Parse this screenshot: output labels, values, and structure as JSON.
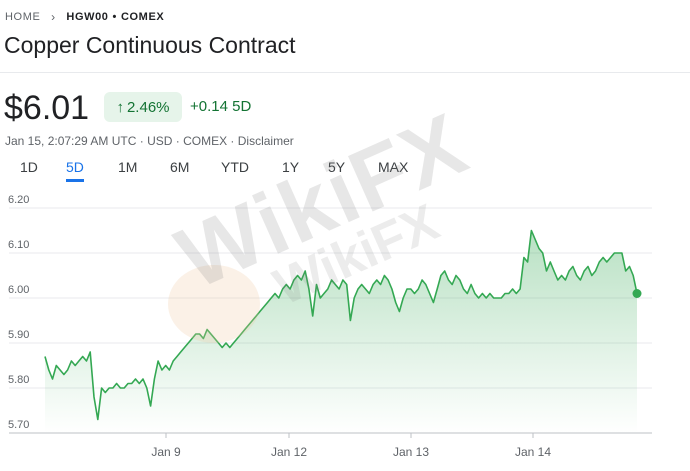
{
  "breadcrumb": {
    "home": "HOME",
    "symbol": "HGW00",
    "separator": "•",
    "exchange": "COMEX"
  },
  "title": "Copper Continuous Contract",
  "quote": {
    "price": "$6.01",
    "pct_change": "2.46%",
    "abs_change": "+0.14 5D",
    "meta": "Jan 15, 2:07:29 AM UTC · USD · COMEX · ",
    "disclaimer": "Disclaimer"
  },
  "tabs": [
    {
      "label": "1D"
    },
    {
      "label": "5D",
      "active": true
    },
    {
      "label": "1M"
    },
    {
      "label": "6M"
    },
    {
      "label": "YTD"
    },
    {
      "label": "1Y"
    },
    {
      "label": "5Y"
    },
    {
      "label": "MAX"
    }
  ],
  "watermark": {
    "big": "WikiFX",
    "small": "WikiFX"
  },
  "colors": {
    "up": "#137333",
    "line": "#34a853",
    "accent": "#1a73e8"
  },
  "chart_data": {
    "type": "area",
    "y_ticks": [
      "6.20",
      "6.10",
      "6.00",
      "5.90",
      "5.80",
      "5.70"
    ],
    "ylim": [
      5.7,
      6.2
    ],
    "x_ticks": [
      "Jan 9",
      "Jan 12",
      "Jan 13",
      "Jan 14"
    ],
    "series": [
      {
        "values": [
          5.87,
          5.84,
          5.82,
          5.85,
          5.84,
          5.83,
          5.84,
          5.86,
          5.85,
          5.86,
          5.87,
          5.86,
          5.88,
          5.78,
          5.73,
          5.8,
          5.79,
          5.8,
          5.8,
          5.81,
          5.8,
          5.8,
          5.81,
          5.81,
          5.82,
          5.81,
          5.82,
          5.8,
          5.76,
          5.82,
          5.86,
          5.84,
          5.85,
          5.84,
          5.86,
          5.87,
          5.88,
          5.89,
          5.9,
          5.91,
          5.92,
          5.92,
          5.91,
          5.93,
          5.92,
          5.91,
          5.9,
          5.89,
          5.9,
          5.89,
          5.9,
          5.91,
          5.92,
          5.93,
          5.94,
          5.95,
          5.96,
          5.97,
          5.98,
          5.99,
          6.0,
          6.01,
          6.0,
          6.02,
          6.03,
          6.02,
          6.04,
          6.05,
          6.04,
          6.06,
          6.02,
          5.96,
          6.03,
          6.0,
          6.01,
          6.02,
          6.04,
          6.03,
          6.02,
          6.04,
          6.03,
          5.95,
          6.0,
          6.02,
          6.03,
          6.02,
          6.01,
          6.03,
          6.04,
          6.03,
          6.05,
          6.04,
          6.02,
          5.99,
          5.97,
          6.0,
          6.02,
          6.02,
          6.01,
          6.02,
          6.04,
          6.03,
          6.01,
          5.99,
          6.02,
          6.05,
          6.06,
          6.04,
          6.03,
          6.05,
          6.04,
          6.02,
          6.01,
          6.03,
          6.01,
          6.0,
          6.01,
          6.0,
          6.01,
          6.0,
          6.0,
          6.0,
          6.01,
          6.01,
          6.02,
          6.01,
          6.02,
          6.09,
          6.08,
          6.15,
          6.13,
          6.11,
          6.1,
          6.06,
          6.08,
          6.06,
          6.04,
          6.05,
          6.04,
          6.06,
          6.07,
          6.05,
          6.04,
          6.06,
          6.07,
          6.05,
          6.06,
          6.08,
          6.09,
          6.08,
          6.09,
          6.1,
          6.1,
          6.1,
          6.06,
          6.07,
          6.05,
          6.01
        ]
      }
    ]
  }
}
